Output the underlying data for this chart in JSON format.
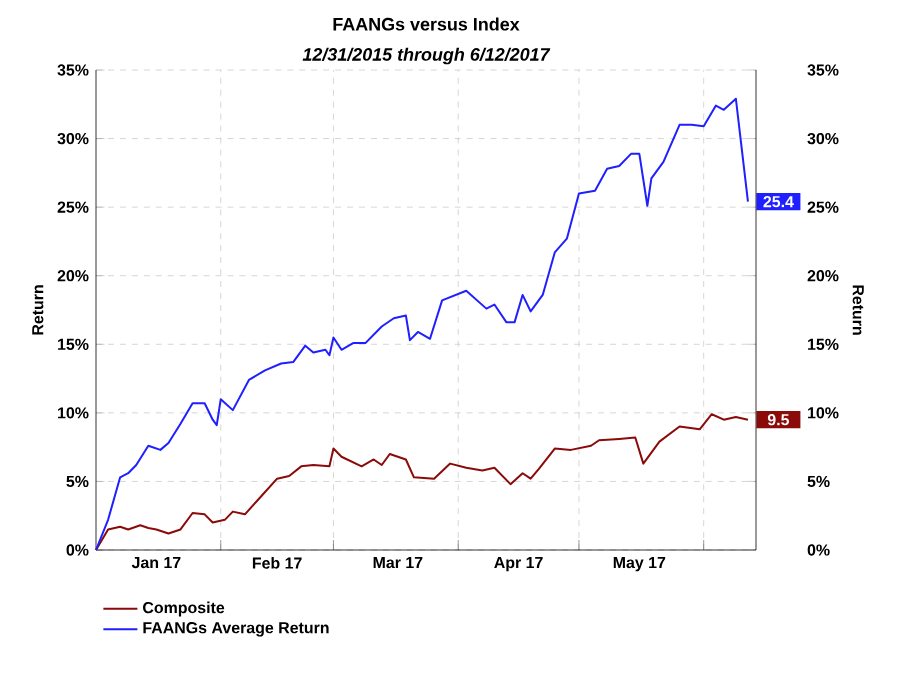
{
  "chart_data": {
    "type": "line",
    "title": "FAANGs versus Index",
    "subtitle": "12/31/2015 through 6/12/2017",
    "ylabel": "Return",
    "y2label": "Return",
    "xlim": [
      "2017-01-01",
      "2017-06-14"
    ],
    "xticks": [
      {
        "value": "2017-01-16",
        "label": "Jan 17"
      },
      {
        "value": "2017-02-01",
        "label": null
      },
      {
        "value": "2017-02-15",
        "label": "Feb 17"
      },
      {
        "value": "2017-03-01",
        "label": null
      },
      {
        "value": "2017-03-17",
        "label": "Mar 17"
      },
      {
        "value": "2017-04-01",
        "label": null
      },
      {
        "value": "2017-04-16",
        "label": "Apr 17"
      },
      {
        "value": "2017-05-01",
        "label": null
      },
      {
        "value": "2017-05-16",
        "label": "May 17"
      },
      {
        "value": "2017-06-01",
        "label": null
      }
    ],
    "ylim": [
      0,
      35
    ],
    "yticks": [
      {
        "value": 0,
        "label": "0%"
      },
      {
        "value": 5,
        "label": "5%"
      },
      {
        "value": 10,
        "label": "10%"
      },
      {
        "value": 15,
        "label": "15%"
      },
      {
        "value": 20,
        "label": "20%"
      },
      {
        "value": 25,
        "label": "25%"
      },
      {
        "value": 30,
        "label": "30%"
      },
      {
        "value": 35,
        "label": "35%"
      }
    ],
    "y2lim": [
      0,
      35
    ],
    "y2ticks": [
      {
        "value": 0,
        "label": "0%"
      },
      {
        "value": 5,
        "label": "5%"
      },
      {
        "value": 10,
        "label": "10%"
      },
      {
        "value": 15,
        "label": "15%"
      },
      {
        "value": 20,
        "label": "20%"
      },
      {
        "value": 25,
        "label": "25%"
      },
      {
        "value": 30,
        "label": "30%"
      },
      {
        "value": 35,
        "label": "35%"
      }
    ],
    "grid": true,
    "legend": "bottom left",
    "series": [
      {
        "name": "Composite",
        "color": "#8b0a0a",
        "x": [
          "2017-01-01",
          "2017-01-04",
          "2017-01-07",
          "2017-01-09",
          "2017-01-12",
          "2017-01-14",
          "2017-01-16",
          "2017-01-19",
          "2017-01-22",
          "2017-01-25",
          "2017-01-28",
          "2017-01-30",
          "2017-02-02",
          "2017-02-04",
          "2017-02-07",
          "2017-02-11",
          "2017-02-15",
          "2017-02-18",
          "2017-02-21",
          "2017-02-24",
          "2017-02-28",
          "2017-03-01",
          "2017-03-03",
          "2017-03-08",
          "2017-03-11",
          "2017-03-13",
          "2017-03-15",
          "2017-03-19",
          "2017-03-21",
          "2017-03-26",
          "2017-03-30",
          "2017-04-03",
          "2017-04-07",
          "2017-04-10",
          "2017-04-14",
          "2017-04-17",
          "2017-04-19",
          "2017-04-21",
          "2017-04-25",
          "2017-04-29",
          "2017-05-04",
          "2017-05-06",
          "2017-05-11",
          "2017-05-15",
          "2017-05-17",
          "2017-05-21",
          "2017-05-26",
          "2017-05-31",
          "2017-06-03",
          "2017-06-06",
          "2017-06-09",
          "2017-06-12"
        ],
        "values": [
          0,
          1.5,
          1.7,
          1.5,
          1.8,
          1.6,
          1.5,
          1.2,
          1.5,
          2.7,
          2.6,
          2.0,
          2.2,
          2.8,
          2.6,
          3.9,
          5.2,
          5.4,
          6.1,
          6.2,
          6.1,
          7.4,
          6.8,
          6.1,
          6.6,
          6.2,
          7.0,
          6.6,
          5.3,
          5.2,
          6.3,
          6.0,
          5.8,
          6.0,
          4.8,
          5.6,
          5.2,
          5.9,
          7.4,
          7.3,
          7.6,
          8.0,
          8.1,
          8.2,
          6.3,
          7.9,
          9.0,
          8.8,
          9.9,
          9.5,
          9.7,
          9.5
        ]
      },
      {
        "name": "FAANGs Average Return",
        "color": "#1f1fff",
        "x": [
          "2017-01-01",
          "2017-01-04",
          "2017-01-07",
          "2017-01-09",
          "2017-01-11",
          "2017-01-14",
          "2017-01-17",
          "2017-01-19",
          "2017-01-22",
          "2017-01-25",
          "2017-01-28",
          "2017-01-30",
          "2017-01-31",
          "2017-02-01",
          "2017-02-04",
          "2017-02-08",
          "2017-02-12",
          "2017-02-16",
          "2017-02-19",
          "2017-02-22",
          "2017-02-24",
          "2017-02-27",
          "2017-02-28",
          "2017-03-01",
          "2017-03-03",
          "2017-03-06",
          "2017-03-09",
          "2017-03-13",
          "2017-03-16",
          "2017-03-19",
          "2017-03-20",
          "2017-03-22",
          "2017-03-25",
          "2017-03-28",
          "2017-04-03",
          "2017-04-08",
          "2017-04-10",
          "2017-04-13",
          "2017-04-15",
          "2017-04-17",
          "2017-04-19",
          "2017-04-22",
          "2017-04-25",
          "2017-04-28",
          "2017-05-01",
          "2017-05-05",
          "2017-05-08",
          "2017-05-11",
          "2017-05-14",
          "2017-05-16",
          "2017-05-18",
          "2017-05-19",
          "2017-05-22",
          "2017-05-26",
          "2017-05-29",
          "2017-06-01",
          "2017-06-04",
          "2017-06-06",
          "2017-06-09",
          "2017-06-12"
        ],
        "values": [
          0,
          2.2,
          5.3,
          5.6,
          6.2,
          7.6,
          7.3,
          7.8,
          9.2,
          10.7,
          10.7,
          9.5,
          9.1,
          11.0,
          10.2,
          12.4,
          13.1,
          13.6,
          13.7,
          14.9,
          14.4,
          14.6,
          14.2,
          15.5,
          14.6,
          15.1,
          15.1,
          16.3,
          16.9,
          17.1,
          15.3,
          15.9,
          15.4,
          18.2,
          18.9,
          17.6,
          17.9,
          16.6,
          16.6,
          18.6,
          17.4,
          18.6,
          21.7,
          22.7,
          26.0,
          26.2,
          27.8,
          28.0,
          28.9,
          28.9,
          25.1,
          27.1,
          28.3,
          31.0,
          31.0,
          30.9,
          32.4,
          32.1,
          32.9,
          25.4
        ]
      }
    ],
    "annotations": [
      {
        "text": "25.4",
        "x": "2017-06-12",
        "y": 25.4
      },
      {
        "text": "9.5",
        "x": "2017-06-12",
        "y": 9.5
      }
    ]
  }
}
